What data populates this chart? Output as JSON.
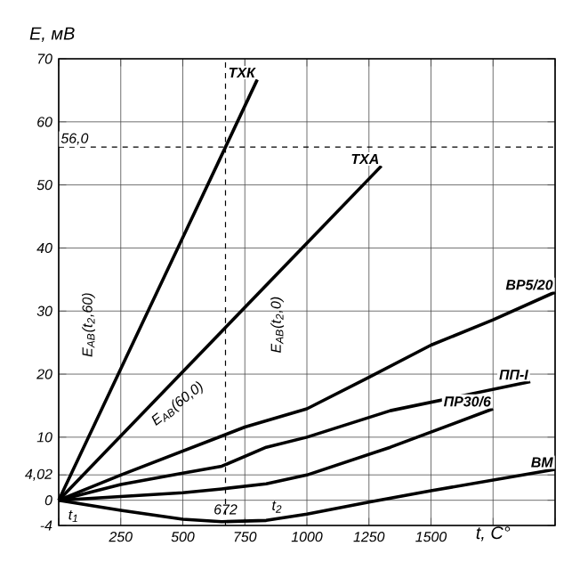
{
  "chart_data": {
    "type": "line",
    "ylabel": "E, мВ",
    "xlabel": "t, C°",
    "xlim": [
      0,
      2000
    ],
    "ylim": [
      -4,
      70
    ],
    "xticks": [
      {
        "value": 0,
        "label": null
      },
      250,
      500,
      750,
      1000,
      1250,
      1500,
      {
        "value": 1750,
        "label": null
      },
      {
        "value": 2000,
        "label": null
      }
    ],
    "yticks": [
      -4,
      0,
      {
        "value": 4.02,
        "label": "4,02"
      },
      10,
      20,
      30,
      40,
      50,
      60,
      70
    ],
    "grid": true,
    "marker": "none",
    "line_style": "solid",
    "series": [
      {
        "name": "ТХК",
        "color": "#000000",
        "x": [
          0,
          672,
          800
        ],
        "values": [
          0,
          56,
          66.7
        ]
      },
      {
        "name": "ТХА",
        "color": "#000000",
        "x": [
          0,
          1300
        ],
        "values": [
          0,
          53
        ]
      },
      {
        "name": "ВР5/20",
        "color": "#000000",
        "x": [
          0,
          250,
          500,
          750,
          1000,
          1250,
          1500,
          1750,
          2000
        ],
        "values": [
          0,
          4,
          7.8,
          11.6,
          14.5,
          19.5,
          24.6,
          28.6,
          33
        ]
      },
      {
        "name": "ПП-I",
        "color": "#000000",
        "x": [
          0,
          250,
          500,
          657,
          836,
          1000,
          1336,
          1900
        ],
        "values": [
          0,
          2.5,
          4.3,
          5.4,
          8.4,
          10,
          14.2,
          18.8
        ]
      },
      {
        "name": "ПР30/6",
        "color": "#000000",
        "x": [
          0,
          250,
          500,
          657,
          836,
          1000,
          1336,
          1750
        ],
        "values": [
          0,
          0.6,
          1.2,
          1.8,
          2.6,
          4,
          8.4,
          14.5
        ]
      },
      {
        "name": "ВМ",
        "color": "#000000",
        "x": [
          0,
          250,
          500,
          657,
          836,
          1000,
          1250,
          1500,
          1750,
          2000
        ],
        "values": [
          0,
          -1.6,
          -3,
          -3.4,
          -3.2,
          -2.2,
          -0.3,
          1.5,
          3.2,
          4.9
        ]
      }
    ],
    "ref_lines": [
      {
        "axis": "y",
        "value": 56,
        "label": "56,0",
        "line_style": "dashed"
      },
      {
        "axis": "x",
        "value": 672,
        "label": "672",
        "line_style": "dashed"
      }
    ],
    "annotations": [
      "E$_{AB}$(t$_{2}$,60)",
      "E$_{AB}$(60,0)",
      "E$_{AB}$(t$_{2}$,0)",
      "t$_{1}$",
      "t$_{2}$"
    ]
  }
}
